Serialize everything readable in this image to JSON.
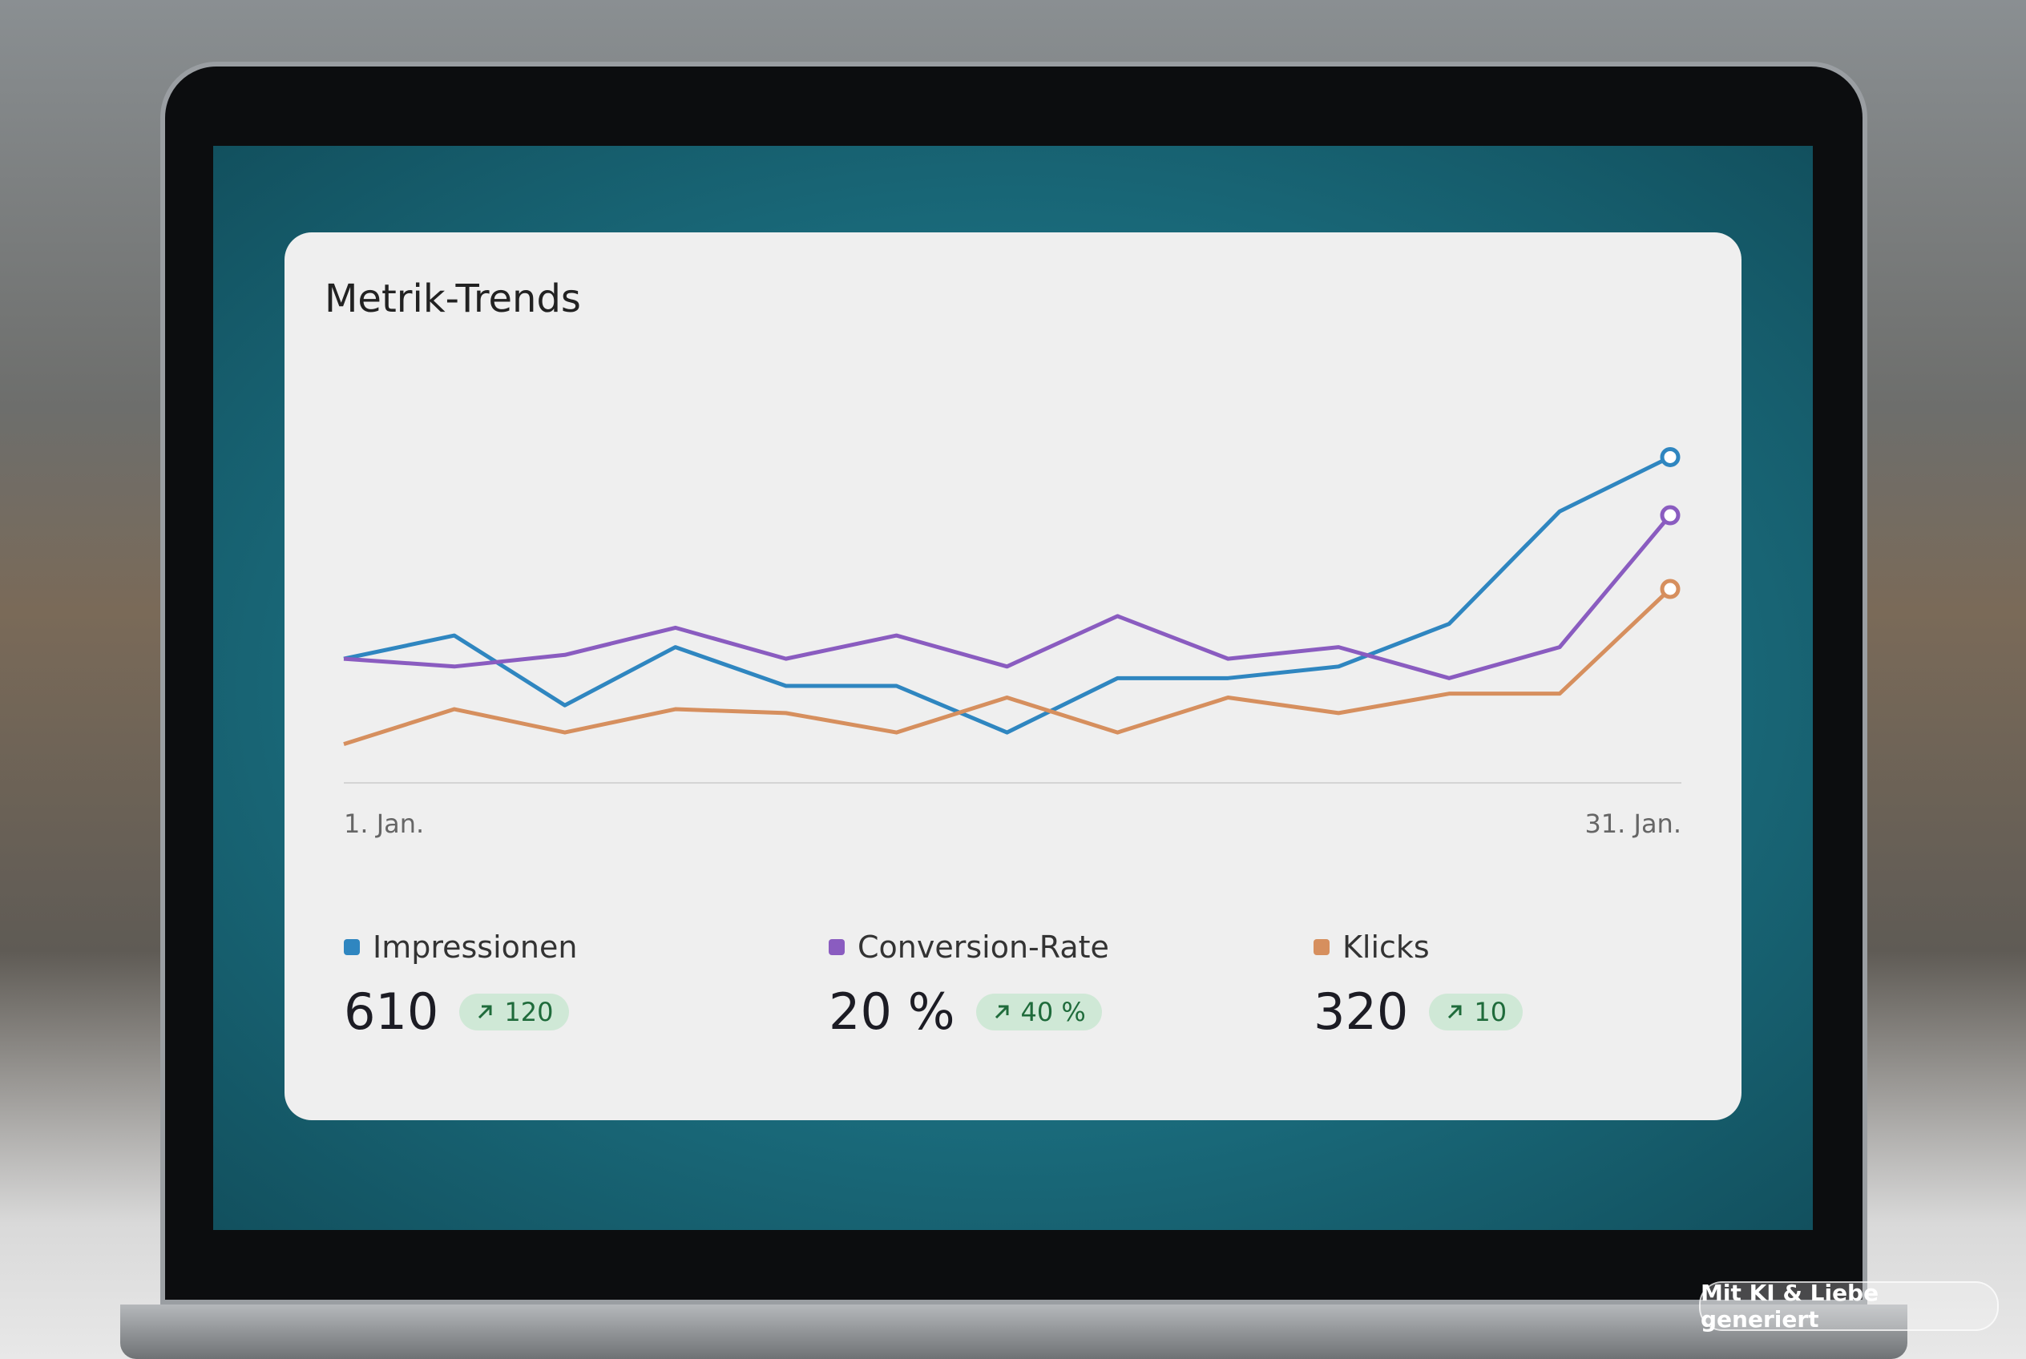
{
  "chart_data": {
    "type": "line",
    "title": "Metrik-Trends",
    "categories": [
      "1. Jan.",
      null,
      null,
      null,
      null,
      null,
      null,
      null,
      null,
      null,
      null,
      null,
      "31. Jan."
    ],
    "ylim": [
      0,
      100
    ],
    "series": [
      {
        "name": "Impressionen",
        "color": "#2f86c0",
        "values": [
          32,
          38,
          20,
          35,
          25,
          25,
          13,
          27,
          27,
          30,
          41,
          70,
          84
        ],
        "summary": "610",
        "change": "120"
      },
      {
        "name": "Conversion-Rate",
        "color": "#8a5cc0",
        "values": [
          32,
          30,
          33,
          40,
          32,
          38,
          30,
          43,
          32,
          35,
          27,
          35,
          69
        ],
        "summary": "20 %",
        "change": "40 %"
      },
      {
        "name": "Klicks",
        "color": "#d68f5e",
        "values": [
          10,
          19,
          13,
          19,
          18,
          13,
          22,
          13,
          22,
          18,
          23,
          23,
          50
        ],
        "summary": "320",
        "change": "10"
      }
    ]
  },
  "watermark": "Mit KI & Liebe generiert"
}
